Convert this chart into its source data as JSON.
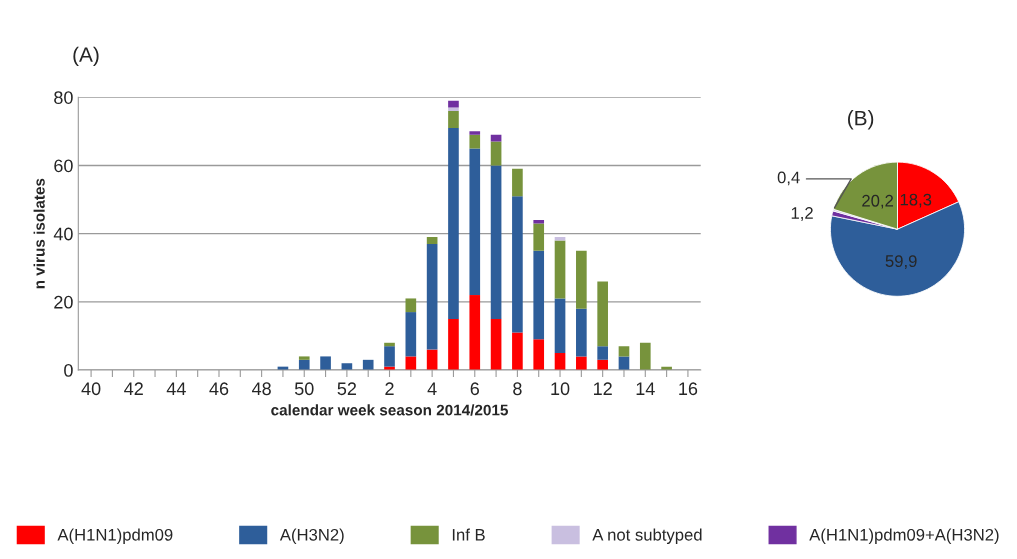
{
  "chart_data": [
    {
      "type": "bar",
      "title": "(A)",
      "xlabel": "calendar week season 2014/2015",
      "ylabel": "n virus isolates",
      "stacked": true,
      "categories": [
        "40",
        null,
        "42",
        null,
        "44",
        null,
        "46",
        null,
        "48",
        null,
        "50",
        null,
        "52",
        null,
        "2",
        null,
        "4",
        null,
        "6",
        null,
        "8",
        null,
        "10",
        null,
        "12",
        null,
        "14",
        null,
        "16"
      ],
      "series": [
        {
          "name": "A(H1N1)pdm09",
          "color": "#ff0000",
          "values": [
            0,
            0,
            0,
            0,
            0,
            0,
            0,
            0,
            0,
            0,
            0,
            0,
            0,
            0,
            1,
            4,
            6,
            15,
            22,
            15,
            11,
            9,
            5,
            4,
            3,
            0,
            0,
            0,
            0
          ]
        },
        {
          "name": "A(H3N2)",
          "color": "#2e5e9a",
          "values": [
            0,
            0,
            0,
            0,
            0,
            0,
            0,
            0,
            0,
            1,
            3,
            4,
            2,
            3,
            6,
            13,
            31,
            56,
            43,
            45,
            40,
            26,
            16,
            14,
            4,
            4,
            0,
            0,
            0
          ]
        },
        {
          "name": "Inf B",
          "color": "#77933c",
          "values": [
            0,
            0,
            0,
            0,
            0,
            0,
            0,
            0,
            0,
            0,
            1,
            0,
            0,
            0,
            1,
            4,
            2,
            5,
            4,
            7,
            8,
            8,
            17,
            17,
            19,
            3,
            8,
            1,
            0
          ]
        },
        {
          "name": "A not subtyped",
          "color": "#c9bfe0",
          "values": [
            0,
            0,
            0,
            0,
            0,
            0,
            0,
            0,
            0,
            0,
            0,
            0,
            0,
            0,
            0,
            0,
            0,
            1,
            0,
            0,
            0,
            0,
            1,
            0,
            0,
            0,
            0,
            0,
            0
          ]
        },
        {
          "name": "A(H1N1)pdm09+A(H3N2)",
          "color": "#7030a0",
          "values": [
            0,
            0,
            0,
            0,
            0,
            0,
            0,
            0,
            0,
            0,
            0,
            0,
            0,
            0,
            0,
            0,
            0,
            2,
            1,
            2,
            0,
            1,
            0,
            0,
            0,
            0,
            0,
            0,
            0
          ]
        }
      ],
      "ylim": [
        0,
        80
      ],
      "yticks": [
        0,
        20,
        40,
        60,
        80
      ],
      "grid": "y",
      "legend": "bottom"
    },
    {
      "type": "pie",
      "title": "(B)",
      "categories": [
        null,
        null,
        null,
        null,
        null
      ],
      "values": [
        18.3,
        59.9,
        1.2,
        0.4,
        20.2
      ],
      "colors": [
        "#ff0000",
        "#2e5e9a",
        "#7030a0",
        "#c9bfe0",
        "#77933c"
      ],
      "value_labels": [
        "18,3",
        "59,9",
        "1,2",
        "0,4",
        "20,2"
      ]
    }
  ]
}
